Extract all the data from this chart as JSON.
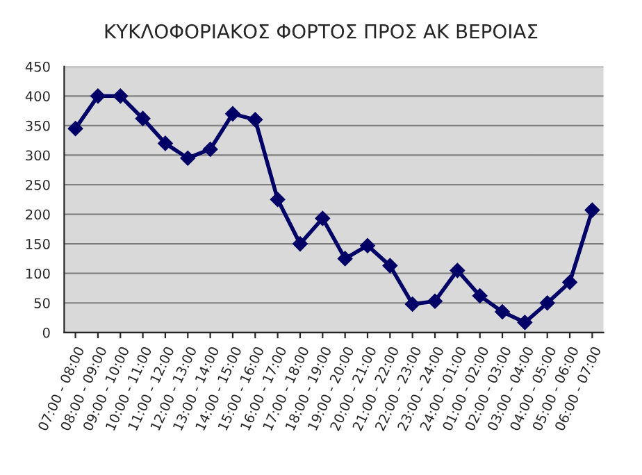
{
  "chart_data": {
    "type": "line",
    "title": "ΚΥΚΛΟΦΟΡΙΑΚΟΣ ΦΟΡΤΟΣ ΠΡΟΣ ΑΚ ΒΕΡΟΙΑΣ",
    "categories": [
      "07:00 - 08:00",
      "08:00 - 09:00",
      "09:00 - 10:00",
      "10:00 - 11:00",
      "11:00 - 12:00",
      "12:00 - 13:00",
      "13:00 - 14:00",
      "14:00 - 15:00",
      "15:00 - 16:00",
      "16:00 - 17:00",
      "17:00 - 18:00",
      "18:00 - 19:00",
      "19:00 - 20:00",
      "20:00 - 21:00",
      "21:00 - 22:00",
      "22:00 - 23:00",
      "23:00 - 24:00",
      "24:00 - 01:00",
      "01:00 - 02:00",
      "02:00 - 03:00",
      "03:00 - 04:00",
      "04:00 - 05:00",
      "05:00 - 06:00",
      "06:00 - 07:00"
    ],
    "series": [
      {
        "color": "#000066",
        "values": [
          345,
          400,
          400,
          362,
          320,
          295,
          310,
          370,
          360,
          225,
          150,
          193,
          125,
          147,
          113,
          48,
          53,
          105,
          62,
          35,
          17,
          50,
          85,
          207
        ]
      }
    ],
    "ylim": [
      0,
      450
    ],
    "yticks": [
      0,
      50,
      100,
      150,
      200,
      250,
      300,
      350,
      400,
      450
    ],
    "grid": "y",
    "marker": "diamond",
    "line_style": "solid",
    "legend": false
  }
}
